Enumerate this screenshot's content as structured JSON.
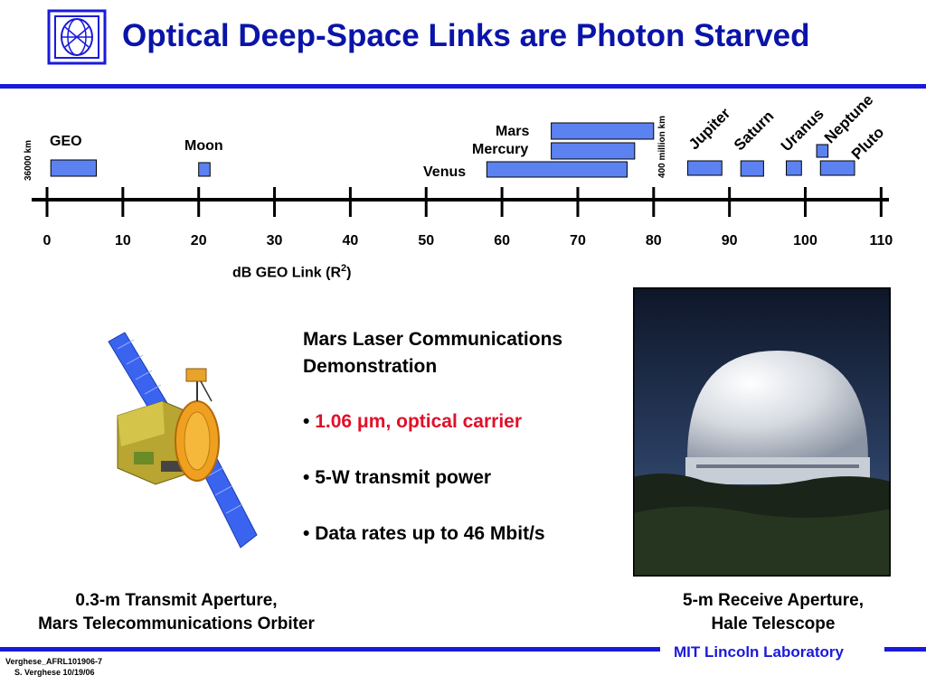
{
  "header": {
    "title": "Optical Deep-Space Links are Photon Starved"
  },
  "scale": {
    "axis_label_main": "dB GEO Link (R",
    "axis_label_sup": "2",
    "axis_label_end": ")",
    "ticks": [
      "0",
      "10",
      "20",
      "30",
      "40",
      "50",
      "60",
      "70",
      "80",
      "90",
      "100",
      "110"
    ],
    "left_note": "36000 km",
    "right_note": "400 million km",
    "bodies": {
      "geo": "GEO",
      "moon": "Moon",
      "mars": "Mars",
      "mercury": "Mercury",
      "venus": "Venus",
      "jupiter": "Jupiter",
      "saturn": "Saturn",
      "uranus": "Uranus",
      "neptune": "Neptune",
      "pluto": "Pluto"
    },
    "ranges_db": {
      "geo": [
        0.5,
        6.5
      ],
      "moon": [
        20.0,
        21.5
      ],
      "mars": [
        66.5,
        80.0
      ],
      "mercury": [
        66.5,
        77.5
      ],
      "venus": [
        58.0,
        76.5
      ],
      "jupiter": [
        84.5,
        89.0
      ],
      "saturn": [
        91.5,
        94.5
      ],
      "uranus": [
        97.5,
        99.5
      ],
      "neptune": [
        101.5,
        103.0
      ],
      "pluto": [
        102.0,
        106.5
      ]
    },
    "bar_color": "#5b82f0"
  },
  "mission": {
    "heading_line1": "Mars Laser Communications",
    "heading_line2": "Demonstration",
    "bullet_glyph": "•",
    "carrier_a": "1.06 ",
    "carrier_mu": "μ",
    "carrier_b": "m, optical carrier",
    "power": "5-W transmit power",
    "rates": "Data rates up to 46 Mbit/s"
  },
  "captions": {
    "left_line1": "0.3-m Transmit Aperture,",
    "left_line2": "Mars Telecommunications Orbiter",
    "right_line1": "5-m Receive Aperture,",
    "right_line2": "Hale Telescope"
  },
  "footer": {
    "brand": "MIT Lincoln Laboratory",
    "ref": "Verghese_AFRL101906-7",
    "author": "S. Verghese 10/19/06"
  },
  "colors": {
    "title": "#0a14a8",
    "rule": "#1a1adb",
    "accent_red": "#e0102a"
  }
}
